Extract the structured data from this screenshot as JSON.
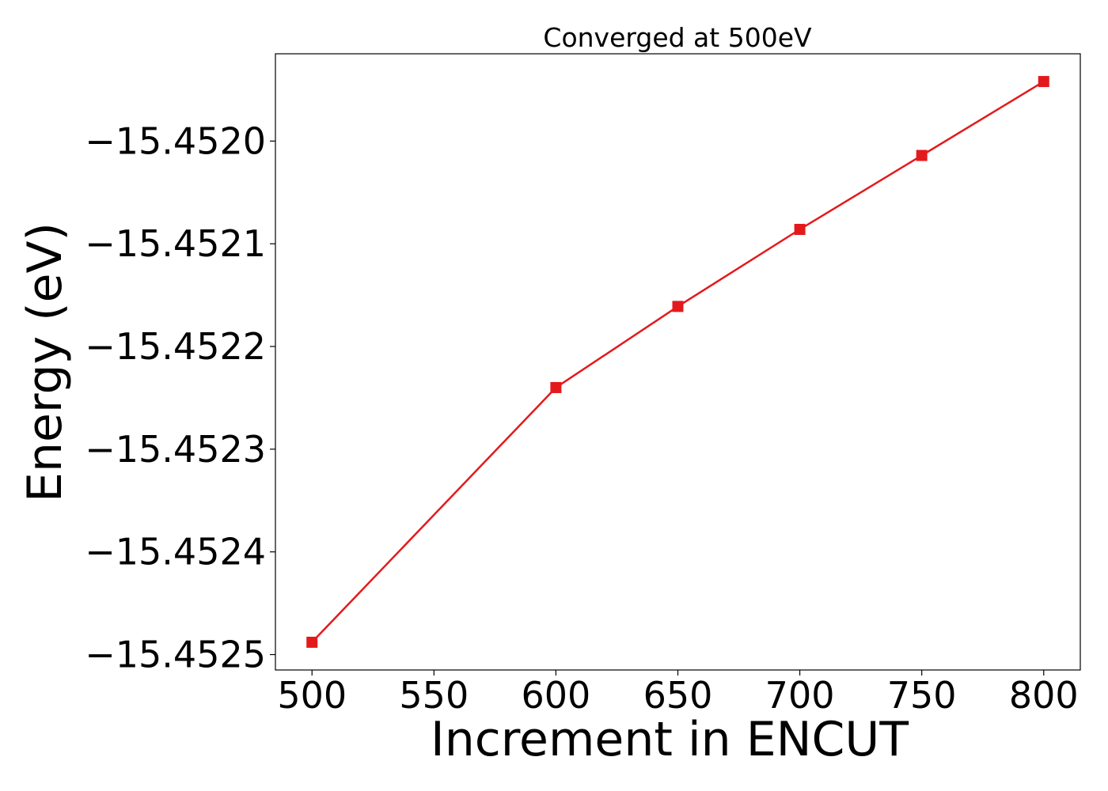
{
  "chart_data": {
    "type": "line",
    "title": "Converged at 500eV",
    "xlabel": "Increment in ENCUT",
    "ylabel": "Energy (eV)",
    "x": [
      500,
      600,
      650,
      700,
      750,
      800
    ],
    "series": [
      {
        "values": [
          -15.452488,
          -15.45224,
          -15.452161,
          -15.452086,
          -15.452014,
          -15.451942
        ],
        "color": "#e31a1c",
        "marker": "square"
      }
    ],
    "xlim": [
      485,
      815
    ],
    "ylim": [
      -15.452515,
      -15.451915
    ],
    "xticks": [
      500,
      550,
      600,
      650,
      700,
      750,
      800
    ],
    "xtick_labels": [
      "500",
      "550",
      "600",
      "650",
      "700",
      "750",
      "800"
    ],
    "yticks": [
      -15.4525,
      -15.4524,
      -15.4523,
      -15.4522,
      -15.4521,
      -15.452
    ],
    "ytick_labels": [
      "−15.4525",
      "−15.4524",
      "−15.4523",
      "−15.4522",
      "−15.4521",
      "−15.4520"
    ],
    "grid": false,
    "legend": false
  }
}
